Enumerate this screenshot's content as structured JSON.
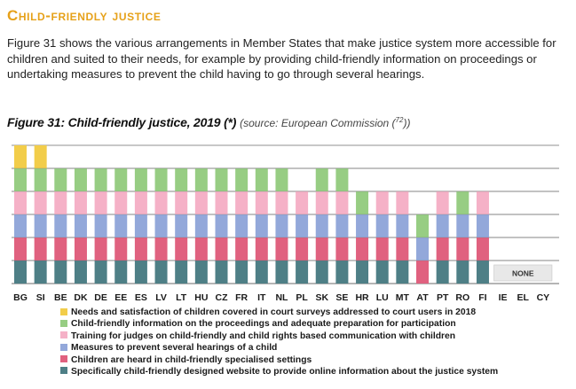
{
  "section": {
    "heading": "Child-friendly justice",
    "intro": "Figure 31 shows the various arrangements in Member States that make justice system more accessible for children and suited to their needs, for example by providing child-friendly information on proceedings or undertaking measures to prevent the child having to go through several hearings."
  },
  "figure": {
    "title_main": "Figure 31: Child-friendly justice, 2019 (*)",
    "title_source": "(source: European Commission (",
    "note_ref": "72",
    "title_source_end": "))"
  },
  "chart_data": {
    "type": "bar",
    "stacked": true,
    "categories": [
      "BG",
      "SI",
      "BE",
      "DK",
      "DE",
      "EE",
      "ES",
      "LV",
      "LT",
      "HU",
      "CZ",
      "FR",
      "IT",
      "NL",
      "PL",
      "SK",
      "SE",
      "HR",
      "LU",
      "MT",
      "AT",
      "PT",
      "RO",
      "FI",
      "IE",
      "EL",
      "CY"
    ],
    "series": [
      {
        "name": "Specifically child-friendly designed website to provide online information about the justice system",
        "color": "#4e7f86",
        "values": [
          1,
          1,
          1,
          1,
          1,
          1,
          1,
          1,
          1,
          1,
          1,
          1,
          1,
          1,
          1,
          1,
          1,
          1,
          1,
          1,
          0,
          1,
          1,
          1,
          0,
          0,
          0
        ]
      },
      {
        "name": "Children are heard in child-friendly specialised settings",
        "color": "#e0617f",
        "values": [
          1,
          1,
          1,
          1,
          1,
          1,
          1,
          1,
          1,
          1,
          1,
          1,
          1,
          1,
          1,
          1,
          1,
          1,
          1,
          1,
          1,
          1,
          1,
          1,
          0,
          0,
          0
        ]
      },
      {
        "name": "Measures  to prevent several hearings of a child",
        "color": "#93a8da",
        "values": [
          1,
          1,
          1,
          1,
          1,
          1,
          1,
          1,
          1,
          1,
          1,
          1,
          1,
          1,
          1,
          1,
          1,
          1,
          1,
          1,
          1,
          1,
          1,
          1,
          0,
          0,
          0
        ]
      },
      {
        "name": "Training for judges on child-friendly and child rights based communication with children",
        "color": "#f5b1c7",
        "values": [
          1,
          1,
          1,
          1,
          1,
          1,
          1,
          1,
          1,
          1,
          1,
          1,
          1,
          1,
          1,
          1,
          1,
          0,
          1,
          1,
          0,
          1,
          0,
          1,
          0,
          0,
          0
        ]
      },
      {
        "name": "Child-friendly information on the proceedings and adequate preparation for participation",
        "color": "#97cd83",
        "values": [
          1,
          1,
          1,
          1,
          1,
          1,
          1,
          1,
          1,
          1,
          1,
          1,
          1,
          1,
          0,
          1,
          1,
          1,
          0,
          0,
          1,
          0,
          1,
          0,
          0,
          0,
          0
        ]
      },
      {
        "name": "Needs and satisfaction of children covered in court surveys addressed to court users in 2018",
        "color": "#f2cd4a",
        "values": [
          1,
          1,
          0,
          0,
          0,
          0,
          0,
          0,
          0,
          0,
          0,
          0,
          0,
          0,
          0,
          0,
          0,
          0,
          0,
          0,
          0,
          0,
          0,
          0,
          0,
          0,
          0
        ]
      }
    ],
    "legend_order": [
      5,
      4,
      3,
      2,
      1,
      0
    ],
    "ylim": [
      0,
      6
    ],
    "grid": true,
    "annotation": {
      "text": "NONE",
      "categories": [
        "IE",
        "EL",
        "CY"
      ]
    }
  }
}
